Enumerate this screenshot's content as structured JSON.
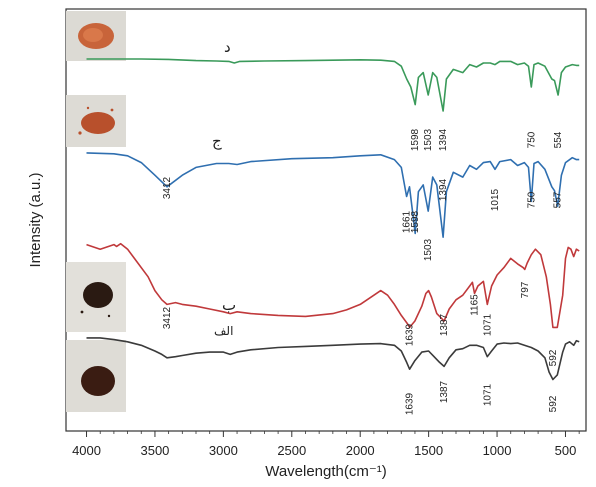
{
  "chart_data": {
    "type": "line",
    "xlabel": "Wavelength(cm⁻¹)",
    "ylabel": "Intensity (a.u.)",
    "xlim": [
      4150,
      350
    ],
    "xticks": [
      4000,
      3500,
      3000,
      2500,
      2000,
      1500,
      1000,
      500
    ],
    "x_reversed": true,
    "grid": false,
    "series": [
      {
        "name": "د",
        "color": "#3a9a5a",
        "points": [
          [
            4000,
            0.95
          ],
          [
            3800,
            0.95
          ],
          [
            3600,
            0.95
          ],
          [
            3400,
            0.945
          ],
          [
            3200,
            0.93
          ],
          [
            3050,
            0.925
          ],
          [
            2960,
            0.92
          ],
          [
            2920,
            0.9
          ],
          [
            2880,
            0.92
          ],
          [
            2700,
            0.925
          ],
          [
            2400,
            0.93
          ],
          [
            2200,
            0.935
          ],
          [
            2000,
            0.94
          ],
          [
            1850,
            0.935
          ],
          [
            1750,
            0.92
          ],
          [
            1700,
            0.86
          ],
          [
            1660,
            0.7
          ],
          [
            1630,
            0.6
          ],
          [
            1598,
            0.38
          ],
          [
            1575,
            0.72
          ],
          [
            1540,
            0.78
          ],
          [
            1503,
            0.5
          ],
          [
            1470,
            0.78
          ],
          [
            1440,
            0.72
          ],
          [
            1394,
            0.3
          ],
          [
            1370,
            0.7
          ],
          [
            1320,
            0.82
          ],
          [
            1250,
            0.78
          ],
          [
            1200,
            0.88
          ],
          [
            1150,
            0.85
          ],
          [
            1100,
            0.9
          ],
          [
            1050,
            0.9
          ],
          [
            1015,
            0.88
          ],
          [
            980,
            0.92
          ],
          [
            900,
            0.92
          ],
          [
            850,
            0.88
          ],
          [
            800,
            0.9
          ],
          [
            770,
            0.86
          ],
          [
            750,
            0.6
          ],
          [
            730,
            0.88
          ],
          [
            700,
            0.9
          ],
          [
            650,
            0.86
          ],
          [
            600,
            0.7
          ],
          [
            580,
            0.68
          ],
          [
            554,
            0.5
          ],
          [
            530,
            0.78
          ],
          [
            500,
            0.85
          ],
          [
            450,
            0.88
          ],
          [
            420,
            0.87
          ],
          [
            400,
            0.87
          ]
        ],
        "peak_labels": [
          "1598",
          "1503",
          "1394",
          "750",
          "554"
        ]
      },
      {
        "name": "ج",
        "color": "#2f6fb0",
        "points": [
          [
            4000,
            0.95
          ],
          [
            3800,
            0.94
          ],
          [
            3700,
            0.92
          ],
          [
            3600,
            0.85
          ],
          [
            3500,
            0.72
          ],
          [
            3412,
            0.6
          ],
          [
            3300,
            0.72
          ],
          [
            3200,
            0.8
          ],
          [
            3050,
            0.84
          ],
          [
            2960,
            0.84
          ],
          [
            2900,
            0.83
          ],
          [
            2800,
            0.86
          ],
          [
            2500,
            0.89
          ],
          [
            2200,
            0.9
          ],
          [
            2000,
            0.92
          ],
          [
            1850,
            0.93
          ],
          [
            1750,
            0.88
          ],
          [
            1700,
            0.8
          ],
          [
            1661,
            0.5
          ],
          [
            1640,
            0.6
          ],
          [
            1598,
            0.12
          ],
          [
            1575,
            0.55
          ],
          [
            1540,
            0.62
          ],
          [
            1503,
            0.35
          ],
          [
            1470,
            0.7
          ],
          [
            1440,
            0.62
          ],
          [
            1394,
            0.08
          ],
          [
            1370,
            0.55
          ],
          [
            1320,
            0.75
          ],
          [
            1250,
            0.7
          ],
          [
            1200,
            0.82
          ],
          [
            1150,
            0.78
          ],
          [
            1100,
            0.85
          ],
          [
            1050,
            0.86
          ],
          [
            1015,
            0.78
          ],
          [
            980,
            0.86
          ],
          [
            900,
            0.88
          ],
          [
            850,
            0.82
          ],
          [
            800,
            0.85
          ],
          [
            770,
            0.8
          ],
          [
            750,
            0.45
          ],
          [
            730,
            0.84
          ],
          [
            700,
            0.86
          ],
          [
            650,
            0.78
          ],
          [
            600,
            0.6
          ],
          [
            580,
            0.56
          ],
          [
            557,
            0.4
          ],
          [
            530,
            0.72
          ],
          [
            500,
            0.85
          ],
          [
            450,
            0.9
          ],
          [
            420,
            0.88
          ],
          [
            400,
            0.88
          ]
        ],
        "peak_labels": [
          "3412",
          "1661",
          "1598",
          "1503",
          "1394",
          "1015",
          "750",
          "557"
        ]
      },
      {
        "name": "ب",
        "color": "#c0393b",
        "points": [
          [
            4000,
            0.95
          ],
          [
            3900,
            0.9
          ],
          [
            3800,
            0.95
          ],
          [
            3780,
            0.93
          ],
          [
            3750,
            0.96
          ],
          [
            3700,
            0.9
          ],
          [
            3650,
            0.8
          ],
          [
            3550,
            0.6
          ],
          [
            3500,
            0.45
          ],
          [
            3450,
            0.35
          ],
          [
            3412,
            0.3
          ],
          [
            3350,
            0.32
          ],
          [
            3300,
            0.3
          ],
          [
            3200,
            0.28
          ],
          [
            3100,
            0.25
          ],
          [
            3000,
            0.22
          ],
          [
            2950,
            0.2
          ],
          [
            2900,
            0.22
          ],
          [
            2800,
            0.2
          ],
          [
            2600,
            0.18
          ],
          [
            2400,
            0.17
          ],
          [
            2200,
            0.2
          ],
          [
            2100,
            0.24
          ],
          [
            2000,
            0.3
          ],
          [
            1900,
            0.4
          ],
          [
            1850,
            0.45
          ],
          [
            1800,
            0.4
          ],
          [
            1750,
            0.3
          ],
          [
            1700,
            0.18
          ],
          [
            1650,
            0.08
          ],
          [
            1639,
            0.05
          ],
          [
            1600,
            0.12
          ],
          [
            1550,
            0.28
          ],
          [
            1520,
            0.42
          ],
          [
            1500,
            0.45
          ],
          [
            1480,
            0.38
          ],
          [
            1440,
            0.2
          ],
          [
            1387,
            0.12
          ],
          [
            1350,
            0.25
          ],
          [
            1300,
            0.35
          ],
          [
            1250,
            0.4
          ],
          [
            1200,
            0.5
          ],
          [
            1180,
            0.54
          ],
          [
            1165,
            0.42
          ],
          [
            1140,
            0.5
          ],
          [
            1100,
            0.55
          ],
          [
            1071,
            0.3
          ],
          [
            1040,
            0.5
          ],
          [
            1000,
            0.62
          ],
          [
            950,
            0.7
          ],
          [
            900,
            0.8
          ],
          [
            850,
            0.74
          ],
          [
            810,
            0.7
          ],
          [
            797,
            0.68
          ],
          [
            780,
            0.75
          ],
          [
            750,
            0.84
          ],
          [
            720,
            0.9
          ],
          [
            680,
            0.84
          ],
          [
            640,
            0.6
          ],
          [
            610,
            0.3
          ],
          [
            592,
            0.05
          ],
          [
            560,
            0.05
          ],
          [
            520,
            0.4
          ],
          [
            500,
            0.8
          ],
          [
            480,
            0.92
          ],
          [
            460,
            0.9
          ],
          [
            440,
            0.82
          ],
          [
            420,
            0.9
          ],
          [
            400,
            0.88
          ]
        ],
        "peak_labels": [
          "3412",
          "1639",
          "1387",
          "1165",
          "1071",
          "797",
          "592"
        ]
      },
      {
        "name": "الف",
        "color": "#3b3b3b",
        "points": [
          [
            4000,
            0.95
          ],
          [
            3900,
            0.95
          ],
          [
            3800,
            0.92
          ],
          [
            3700,
            0.88
          ],
          [
            3600,
            0.82
          ],
          [
            3500,
            0.72
          ],
          [
            3450,
            0.66
          ],
          [
            3412,
            0.6
          ],
          [
            3350,
            0.62
          ],
          [
            3300,
            0.64
          ],
          [
            3200,
            0.68
          ],
          [
            3100,
            0.7
          ],
          [
            3000,
            0.7
          ],
          [
            2950,
            0.66
          ],
          [
            2900,
            0.7
          ],
          [
            2800,
            0.74
          ],
          [
            2600,
            0.78
          ],
          [
            2400,
            0.8
          ],
          [
            2200,
            0.82
          ],
          [
            2000,
            0.84
          ],
          [
            1850,
            0.85
          ],
          [
            1750,
            0.82
          ],
          [
            1700,
            0.72
          ],
          [
            1660,
            0.52
          ],
          [
            1639,
            0.4
          ],
          [
            1600,
            0.55
          ],
          [
            1550,
            0.7
          ],
          [
            1500,
            0.72
          ],
          [
            1460,
            0.62
          ],
          [
            1420,
            0.52
          ],
          [
            1387,
            0.45
          ],
          [
            1350,
            0.6
          ],
          [
            1300,
            0.74
          ],
          [
            1250,
            0.76
          ],
          [
            1200,
            0.82
          ],
          [
            1150,
            0.82
          ],
          [
            1100,
            0.78
          ],
          [
            1071,
            0.62
          ],
          [
            1040,
            0.72
          ],
          [
            1000,
            0.84
          ],
          [
            950,
            0.86
          ],
          [
            900,
            0.85
          ],
          [
            850,
            0.86
          ],
          [
            800,
            0.82
          ],
          [
            750,
            0.78
          ],
          [
            700,
            0.72
          ],
          [
            650,
            0.6
          ],
          [
            620,
            0.35
          ],
          [
            592,
            0.22
          ],
          [
            560,
            0.3
          ],
          [
            520,
            0.7
          ],
          [
            500,
            0.84
          ],
          [
            470,
            0.88
          ],
          [
            440,
            0.82
          ],
          [
            420,
            0.9
          ],
          [
            400,
            0.88
          ]
        ],
        "peak_labels": [
          "1639",
          "1387",
          "1071",
          "592"
        ]
      }
    ]
  }
}
